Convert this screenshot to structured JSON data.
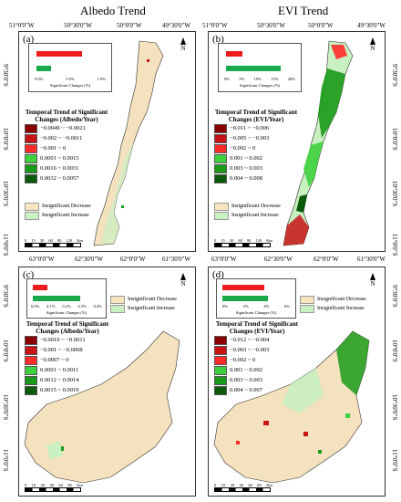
{
  "titles": {
    "left": "Albedo Trend",
    "right": "EVI Trend"
  },
  "top_lon_labels": [
    "51°0'0\"W",
    "50°30'0\"W",
    "50°0'0\"W",
    "49°30'0\"W"
  ],
  "top_lon_labels_right": [
    "51°0'0\"W",
    "50°30'0\"W",
    "50°0'0\"W",
    "49°30'0\"W"
  ],
  "lat_labels_top": [
    "9°30'0\"S",
    "10°0'0\"S",
    "10°30'0\"S",
    "11°0'0\"S"
  ],
  "mid_lon_labels": [
    "63°0'0\"W",
    "62°30'0\"W",
    "62°0'0\"W",
    "61°30'0\"W"
  ],
  "mid_lon_labels_right": [
    "63°0'0\"W",
    "62°30'0\"W",
    "62°0'0\"W",
    "61°30'0\"W"
  ],
  "lat_labels_bottom": [
    "9°30'0\"S",
    "10°0'0\"S",
    "10°30'0\"S",
    "11°0'0\"S"
  ],
  "north_label": "N",
  "panels": {
    "a": {
      "label": "(a)",
      "bar_ticks": [
        "0.0%",
        "0.5%",
        "1.0%"
      ],
      "bar_axis": "Significant Changes (%)",
      "bars": [
        0.76,
        0.24
      ],
      "legend_title": "Temporal Trend of Significant Changes (Albedo/Year)",
      "legend_items": [
        "−0.0049 ~ −0.0021",
        "−0.002 ~ −0.0011",
        "−0.001 ~ 0",
        "0.0001 ~ 0.0015",
        "0.0016 ~ 0.0031",
        "0.0032 ~ 0.0057"
      ],
      "insig": [
        "Insignificant Decrease",
        "Insignificant Increase"
      ],
      "scale": [
        "0",
        "15",
        "30",
        "60",
        "90",
        "120",
        "Km"
      ]
    },
    "b": {
      "label": "(b)",
      "bar_ticks": [
        "0%",
        "5%",
        "10%",
        "15%",
        "20%"
      ],
      "bar_axis": "Significant Changes (%)",
      "bars": [
        0.28,
        0.9
      ],
      "legend_title": "Temporal Trend of Significant Changes (EVI/Year)",
      "legend_items": [
        "−0.011 ~ −0.006",
        "−0.005 ~ −0.003",
        "−0.002 ~ 0",
        "0.001 ~ 0.002",
        "0.003 ~ 0.003",
        "0.004 ~ 0.008"
      ],
      "insig": [
        "Insignificant Decrease",
        "Insignificant Increase"
      ],
      "scale": [
        "0",
        "15",
        "30",
        "60",
        "90",
        "120",
        "Km"
      ]
    },
    "c": {
      "label": "(c)",
      "bar_ticks": [
        "0.0%",
        "0.1%",
        "0.2%",
        "0.3%",
        "0.4%"
      ],
      "bar_axis": "Significant Changes (%)",
      "bars": [
        0.24,
        0.78
      ],
      "legend_title": "Temporal Trend of Significant Changes (Albedo/Year)",
      "legend_items": [
        "−0.0019 ~ −0.0011",
        "−0.001 ~ −0.0008",
        "−0.0007 ~ 0",
        "0.0001 ~ 0.0011",
        "0.0012 ~ 0.0014",
        "0.0015 ~ 0.0019"
      ],
      "insig": [
        "Insignificant Decrease",
        "Insignificant Increase"
      ],
      "scale": [
        "0",
        "10",
        "20",
        "40",
        "60",
        "80",
        "Km"
      ]
    },
    "d": {
      "label": "(d)",
      "bar_ticks": [
        "0%",
        "2%",
        "4%",
        "6%"
      ],
      "bar_axis": "Significant Changes (%)",
      "bars": [
        0.66,
        0.72
      ],
      "legend_title": "Temporal Trend of Significant Changes (EVI/Year)",
      "legend_items": [
        "−0.012 ~ −0.004",
        "−0.003 ~ −0.003",
        "−0.002 ~ 0",
        "0.001 ~ 0.002",
        "0.003 ~ 0.003",
        "0.004 ~ 0.007"
      ],
      "insig": [
        "Insignificant Decrease",
        "Insignificant Increase"
      ],
      "scale": [
        "0",
        "10",
        "20",
        "40",
        "60",
        "80",
        "Km"
      ]
    }
  },
  "colors": {
    "dark_red": "#8b0000",
    "red": "#c81414",
    "light_red": "#ff2a2a",
    "light_green": "#3ed13e",
    "green": "#1a9a1a",
    "dark_green": "#0a5a0a",
    "insig_decrease": "#f7e4c0",
    "insig_increase": "#c9f0c0",
    "bar_red": "#ee1c1c",
    "bar_green": "#19a84a"
  }
}
